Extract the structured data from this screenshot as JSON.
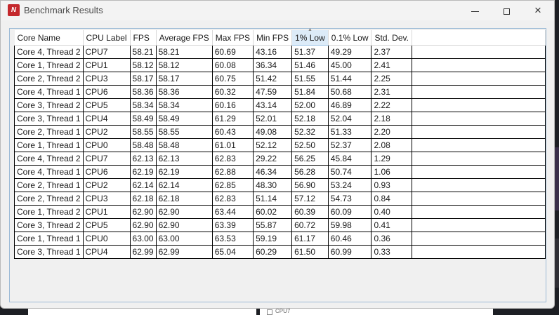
{
  "window": {
    "title": "Benchmark Results",
    "app_icon_text": "N",
    "buttons": {
      "minimize": "minimize",
      "maximize": "maximize",
      "close": "×"
    }
  },
  "background": {
    "checkbox_label": "CPU7"
  },
  "table": {
    "sorted_column": "1% Low",
    "columns": [
      "Core Name",
      "CPU Label",
      "FPS",
      "Average FPS",
      "Max FPS",
      "Min FPS",
      "1% Low",
      "0.1% Low",
      "Std. Dev."
    ],
    "rows": [
      [
        "Core 4, Thread 2",
        "CPU7",
        "58.21",
        "58.21",
        "60.69",
        "43.16",
        "51.37",
        "49.29",
        "2.37"
      ],
      [
        "Core 1, Thread 2",
        "CPU1",
        "58.12",
        "58.12",
        "60.08",
        "36.34",
        "51.46",
        "45.00",
        "2.41"
      ],
      [
        "Core 2, Thread 2",
        "CPU3",
        "58.17",
        "58.17",
        "60.75",
        "51.42",
        "51.55",
        "51.44",
        "2.25"
      ],
      [
        "Core 4, Thread 1",
        "CPU6",
        "58.36",
        "58.36",
        "60.32",
        "47.59",
        "51.84",
        "50.68",
        "2.31"
      ],
      [
        "Core 3, Thread 2",
        "CPU5",
        "58.34",
        "58.34",
        "60.16",
        "43.14",
        "52.00",
        "46.89",
        "2.22"
      ],
      [
        "Core 3, Thread 1",
        "CPU4",
        "58.49",
        "58.49",
        "61.29",
        "52.01",
        "52.18",
        "52.04",
        "2.18"
      ],
      [
        "Core 2, Thread 1",
        "CPU2",
        "58.55",
        "58.55",
        "60.43",
        "49.08",
        "52.32",
        "51.33",
        "2.20"
      ],
      [
        "Core 1, Thread 1",
        "CPU0",
        "58.48",
        "58.48",
        "61.01",
        "52.12",
        "52.50",
        "52.37",
        "2.08"
      ],
      [
        "Core 4, Thread 2",
        "CPU7",
        "62.13",
        "62.13",
        "62.83",
        "29.22",
        "56.25",
        "45.84",
        "1.29"
      ],
      [
        "Core 4, Thread 1",
        "CPU6",
        "62.19",
        "62.19",
        "62.88",
        "46.34",
        "56.28",
        "50.74",
        "1.06"
      ],
      [
        "Core 2, Thread 1",
        "CPU2",
        "62.14",
        "62.14",
        "62.85",
        "48.30",
        "56.90",
        "53.24",
        "0.93"
      ],
      [
        "Core 2, Thread 2",
        "CPU3",
        "62.18",
        "62.18",
        "62.83",
        "51.14",
        "57.12",
        "54.73",
        "0.84"
      ],
      [
        "Core 1, Thread 2",
        "CPU1",
        "62.90",
        "62.90",
        "63.44",
        "60.02",
        "60.39",
        "60.09",
        "0.40"
      ],
      [
        "Core 3, Thread 2",
        "CPU5",
        "62.90",
        "62.90",
        "63.39",
        "55.87",
        "60.72",
        "59.98",
        "0.41"
      ],
      [
        "Core 1, Thread 1",
        "CPU0",
        "63.00",
        "63.00",
        "63.53",
        "59.19",
        "61.17",
        "60.46",
        "0.36"
      ],
      [
        "Core 3, Thread 1",
        "CPU4",
        "62.99",
        "62.99",
        "65.04",
        "60.29",
        "61.50",
        "60.99",
        "0.33"
      ]
    ]
  }
}
